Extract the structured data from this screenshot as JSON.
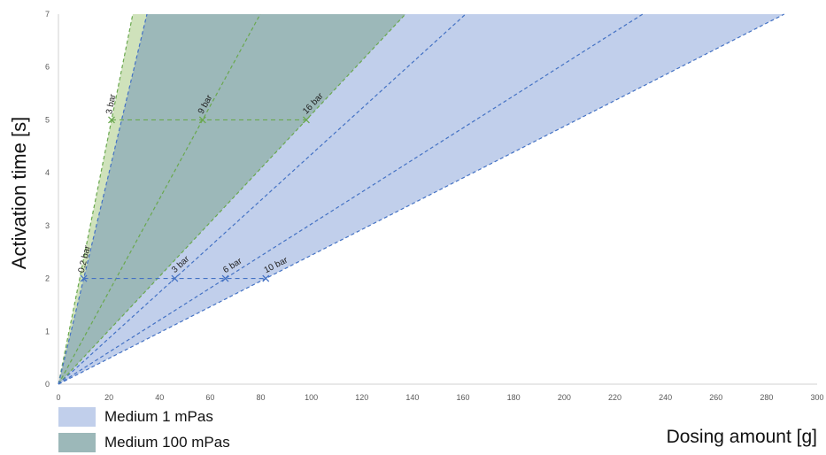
{
  "chart_data": {
    "type": "line",
    "xlabel": "Dosing amount [g]",
    "ylabel": "Activation time [s]",
    "xlim": [
      0,
      300
    ],
    "ylim": [
      0,
      7
    ],
    "x_ticks": [
      0,
      20,
      40,
      60,
      80,
      100,
      120,
      140,
      160,
      180,
      200,
      220,
      240,
      260,
      280,
      300
    ],
    "y_ticks": [
      0,
      1,
      2,
      3,
      4,
      5,
      6,
      7
    ],
    "grid": false,
    "legend": [
      {
        "label": "Medium 1 mPas",
        "color": "#c1cfeb"
      },
      {
        "label": "Medium 100 mPas",
        "color": "#9cb8b9"
      }
    ],
    "series": [
      {
        "group": "Medium 100 mPas",
        "label": "3 bar",
        "color": "#6aa84f",
        "points": [
          [
            0,
            0
          ],
          [
            21,
            5
          ]
        ]
      },
      {
        "group": "Medium 100 mPas",
        "label": "9 bar",
        "color": "#6aa84f",
        "points": [
          [
            0,
            0
          ],
          [
            57,
            5
          ]
        ]
      },
      {
        "group": "Medium 100 mPas",
        "label": "16 bar",
        "color": "#6aa84f",
        "points": [
          [
            0,
            0
          ],
          [
            98,
            5
          ]
        ]
      },
      {
        "group": "Medium 1 mPas",
        "label": "0,2 bar",
        "color": "#4472c4",
        "points": [
          [
            0,
            0
          ],
          [
            10,
            2
          ]
        ]
      },
      {
        "group": "Medium 1 mPas",
        "label": "3 bar",
        "color": "#4472c4",
        "points": [
          [
            0,
            0
          ],
          [
            46,
            2
          ]
        ]
      },
      {
        "group": "Medium 1 mPas",
        "label": "6 bar",
        "color": "#4472c4",
        "points": [
          [
            0,
            0
          ],
          [
            66,
            2
          ]
        ]
      },
      {
        "group": "Medium 1 mPas",
        "label": "10 bar",
        "color": "#4472c4",
        "points": [
          [
            0,
            0
          ],
          [
            82,
            2
          ]
        ]
      }
    ],
    "reference_lines": [
      {
        "group": "Medium 100 mPas",
        "y": 5,
        "x_range": [
          21,
          98
        ],
        "color": "#6aa84f"
      },
      {
        "group": "Medium 1 mPas",
        "y": 2,
        "x_range": [
          10,
          82
        ],
        "color": "#4472c4"
      }
    ]
  }
}
